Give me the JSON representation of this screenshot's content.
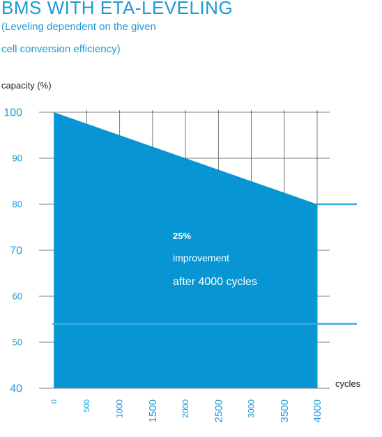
{
  "title": "BMS WITH ETA-LEVELING",
  "subtitle_lines": [
    "(Leveling dependent on the given",
    "cell conversion efficiency)"
  ],
  "colors": {
    "accent": "#1a9ad6",
    "fill": "#0796d3",
    "grid": "#555555",
    "line": "#3aaee0",
    "annotation": "#ffffff"
  },
  "chart_data": {
    "type": "area",
    "title": "BMS WITH ETA-LEVELING",
    "subtitle": "(Leveling dependent on the given cell conversion efficiency)",
    "ylabel": "capacity (%)",
    "xlabel": "cycles",
    "xlim": [
      -500,
      4000
    ],
    "ylim": [
      40,
      100
    ],
    "x_ticks": [
      0,
      500,
      1000,
      1500,
      2000,
      2500,
      3000,
      3500,
      4000
    ],
    "x_tick_labels": [
      "0",
      "500",
      "1000",
      "1500",
      "2000",
      "2500",
      "3000",
      "3500",
      "4000"
    ],
    "y_ticks": [
      100,
      90,
      80,
      70,
      60,
      50,
      40
    ],
    "y_tick_labels": [
      "100",
      "90",
      "80",
      "70",
      "60",
      "50",
      "40"
    ],
    "grid": true,
    "series": [
      {
        "x": [
          0,
          4000
        ],
        "y": [
          100,
          80
        ]
      }
    ],
    "reference_lines": [
      {
        "y": 80
      },
      {
        "y": 54
      }
    ],
    "annotation": [
      "25%",
      "improvement",
      "after 4000 cycles"
    ]
  }
}
